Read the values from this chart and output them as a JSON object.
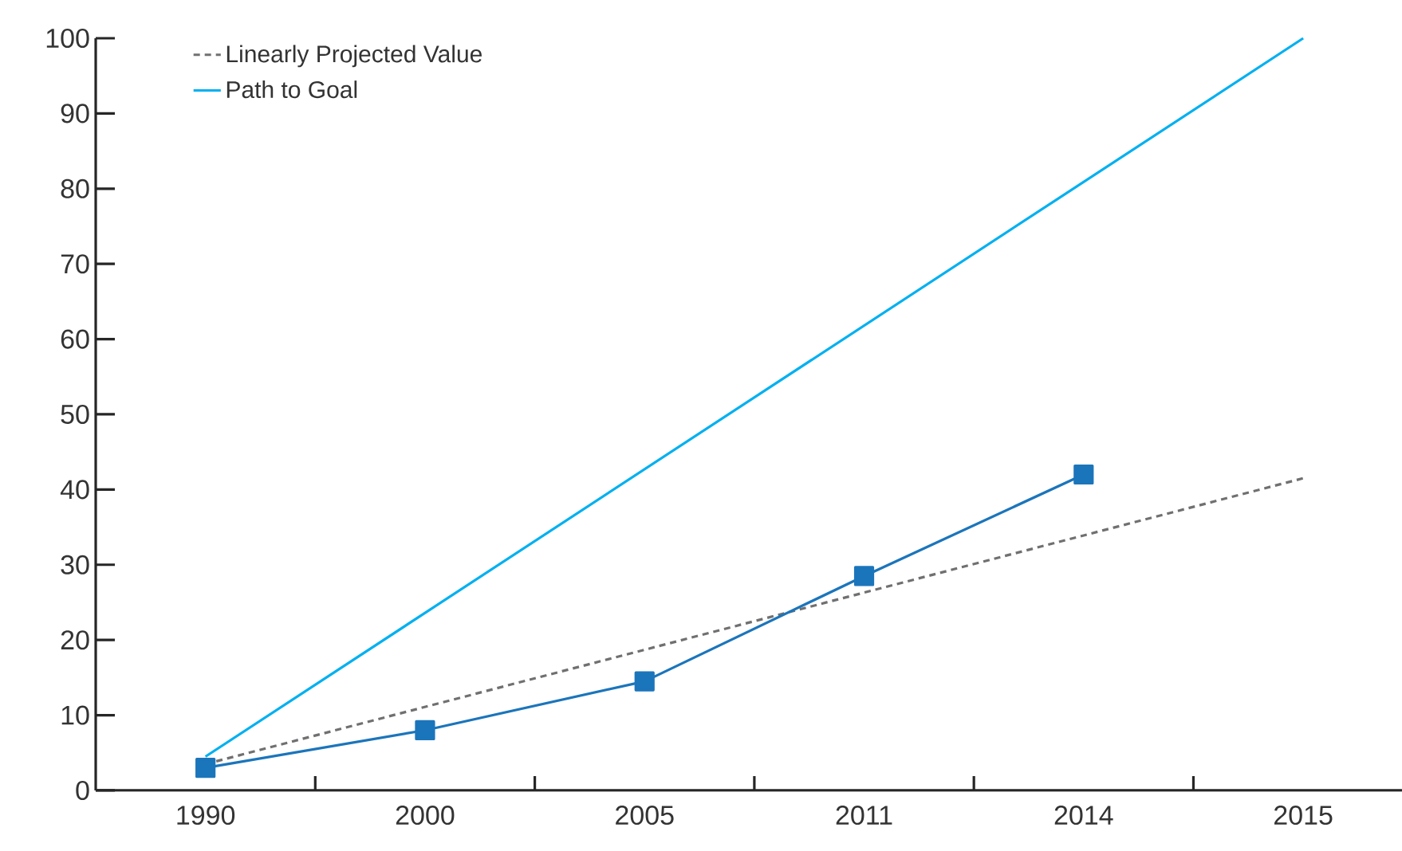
{
  "chart_data": {
    "type": "line",
    "categories": [
      "1990",
      "2000",
      "2005",
      "2011",
      "2014",
      "2015"
    ],
    "series": [
      {
        "name": "Linearly Projected Value",
        "color": "#707070",
        "line_style": "dashed",
        "marker": "none",
        "values": [
          3.5,
          null,
          null,
          null,
          null,
          41.5
        ]
      },
      {
        "name": "Path to Goal",
        "color": "#00b0f0",
        "line_style": "solid",
        "marker": "none",
        "values": [
          4.5,
          null,
          null,
          null,
          null,
          100
        ]
      },
      {
        "color": "#1b75bb",
        "line_style": "solid",
        "marker": "square",
        "values": [
          3,
          8,
          14.5,
          28.5,
          42,
          null
        ]
      }
    ],
    "ylim": [
      0,
      100
    ],
    "yticks": [
      0,
      10,
      20,
      30,
      40,
      50,
      60,
      70,
      80,
      90,
      100
    ],
    "grid": false,
    "legend": "top left"
  }
}
